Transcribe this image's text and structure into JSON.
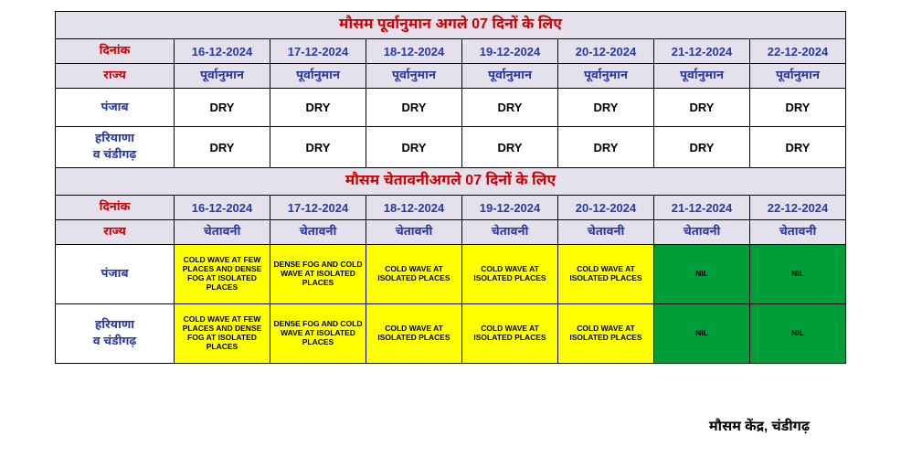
{
  "colors": {
    "lavender": "#e4e0ec",
    "yellow": "#ffff00",
    "green": "#009e3b",
    "white": "#ffffff",
    "blue_text": "#2a3aa0",
    "red_text": "#cc0000",
    "black": "#000000"
  },
  "forecast": {
    "title": "मौसम पूर्वानुमान अगले 07 दिनों के लिए",
    "date_label": "दिनांक",
    "state_label": "राज्य",
    "sub_label": "पूर्वानुमान",
    "dates": [
      "16-12-2024",
      "17-12-2024",
      "18-12-2024",
      "19-12-2024",
      "20-12-2024",
      "21-12-2024",
      "22-12-2024"
    ],
    "rows": [
      {
        "state": "पंजाब",
        "values": [
          "DRY",
          "DRY",
          "DRY",
          "DRY",
          "DRY",
          "DRY",
          "DRY"
        ]
      },
      {
        "state": "हरियाणा\nव चंडीगढ़",
        "values": [
          "DRY",
          "DRY",
          "DRY",
          "DRY",
          "DRY",
          "DRY",
          "DRY"
        ]
      }
    ]
  },
  "warning": {
    "title": "मौसम चेतावनीअगले 07 दिनों के लिए",
    "date_label": "दिनांक",
    "state_label": "राज्य",
    "sub_label": "चेतावनी",
    "dates": [
      "16-12-2024",
      "17-12-2024",
      "18-12-2024",
      "19-12-2024",
      "20-12-2024",
      "21-12-2024",
      "22-12-2024"
    ],
    "rows": [
      {
        "state": "पंजाब",
        "cells": [
          {
            "text": "COLD WAVE AT FEW PLACES AND DENSE FOG AT ISOLATED PLACES",
            "bg": "#ffff00",
            "fg": "#000000"
          },
          {
            "text": "DENSE FOG AND COLD WAVE AT ISOLATED PLACES",
            "bg": "#ffff00",
            "fg": "#000000"
          },
          {
            "text": "COLD WAVE AT ISOLATED PLACES",
            "bg": "#ffff00",
            "fg": "#000000"
          },
          {
            "text": "COLD WAVE AT ISOLATED PLACES",
            "bg": "#ffff00",
            "fg": "#000000"
          },
          {
            "text": "COLD WAVE AT ISOLATED PLACES",
            "bg": "#ffff00",
            "fg": "#000000"
          },
          {
            "text": "NIL",
            "bg": "#009e3b",
            "fg": "#000000"
          },
          {
            "text": "NIL",
            "bg": "#009e3b",
            "fg": "#000000"
          }
        ]
      },
      {
        "state": "हरियाणा\nव चंडीगढ़",
        "cells": [
          {
            "text": "COLD WAVE AT FEW PLACES AND DENSE FOG AT ISOLATED PLACES",
            "bg": "#ffff00",
            "fg": "#000000"
          },
          {
            "text": "DENSE FOG AND COLD WAVE AT ISOLATED PLACES",
            "bg": "#ffff00",
            "fg": "#000000"
          },
          {
            "text": "COLD WAVE AT ISOLATED PLACES",
            "bg": "#ffff00",
            "fg": "#000000"
          },
          {
            "text": "COLD WAVE AT ISOLATED PLACES",
            "bg": "#ffff00",
            "fg": "#000000"
          },
          {
            "text": "COLD WAVE AT ISOLATED PLACES",
            "bg": "#ffff00",
            "fg": "#000000"
          },
          {
            "text": "NIL",
            "bg": "#009e3b",
            "fg": "#000000"
          },
          {
            "text": "NIL",
            "bg": "#009e3b",
            "fg": "#000000"
          }
        ]
      }
    ]
  },
  "footer": "मौसम  केंद्र, चंडीगढ़"
}
